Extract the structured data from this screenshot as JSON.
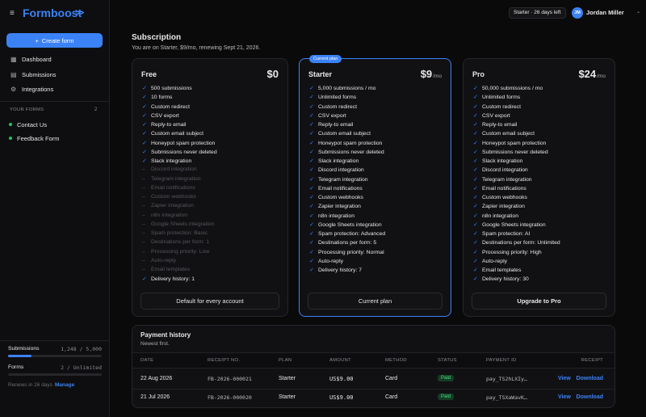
{
  "topbar": {
    "brand": "Formboost",
    "plan_badge": "Starter · 26 days left",
    "avatar": "JM",
    "user": "Jordan Miller"
  },
  "sidebar": {
    "create_button": "Create form",
    "nav": [
      "Dashboard",
      "Submissions",
      "Integrations"
    ],
    "forms_heading": "YOUR FORMS",
    "forms_count": "2",
    "forms": [
      "Contact Us",
      "Feedback Form"
    ],
    "usage": [
      {
        "label": "Submissions",
        "value": "1,248 / 5,000"
      },
      {
        "label": "Forms",
        "value": "2 / Unlimited"
      }
    ],
    "renewal": "Renews in 26 days ·",
    "manage": "Manage"
  },
  "subscription": {
    "title": "Subscription",
    "subtitle": "You are on Starter, $9/mo, renewing Sept 21, 2026.",
    "plans": [
      {
        "name": "Free",
        "price": "$0",
        "button": "Default for every account",
        "features": [
          {
            "text": "500 submissions",
            "included": true
          },
          {
            "text": "10 forms",
            "included": true
          },
          {
            "text": "Custom redirect",
            "included": true
          },
          {
            "text": "CSV export",
            "included": true
          },
          {
            "text": "Reply-to email",
            "included": true
          },
          {
            "text": "Custom email subject",
            "included": true
          },
          {
            "text": "Honeypot spam protection",
            "included": true
          },
          {
            "text": "Submissions never deleted",
            "included": true
          },
          {
            "text": "Slack integration",
            "included": true
          },
          {
            "text": "Discord integration",
            "included": false
          },
          {
            "text": "Telegram integration",
            "included": false
          },
          {
            "text": "Email notifications",
            "included": false
          },
          {
            "text": "Custom webhooks",
            "included": false
          },
          {
            "text": "Zapier integration",
            "included": false
          },
          {
            "text": "n8n integration",
            "included": false
          },
          {
            "text": "Google Sheets integration",
            "included": false
          },
          {
            "text": "Spam protection: Basic",
            "included": false
          },
          {
            "text": "Destinations per form: 1",
            "included": false
          },
          {
            "text": "Processing priority: Low",
            "included": false
          },
          {
            "text": "Auto-reply",
            "included": false
          },
          {
            "text": "Email templates",
            "included": false
          },
          {
            "text": "Delivery history: 1",
            "included": true
          }
        ]
      },
      {
        "name": "Starter",
        "badge": "Current plan",
        "price": "$9",
        "period": "/mo",
        "current": true,
        "button": "Current plan",
        "features": [
          {
            "text": "5,000 submissions / mo",
            "included": true
          },
          {
            "text": "Unlimited forms",
            "included": true
          },
          {
            "text": "Custom redirect",
            "included": true
          },
          {
            "text": "CSV export",
            "included": true
          },
          {
            "text": "Reply-to email",
            "included": true
          },
          {
            "text": "Custom email subject",
            "included": true
          },
          {
            "text": "Honeypot spam protection",
            "included": true
          },
          {
            "text": "Submissions never deleted",
            "included": true
          },
          {
            "text": "Slack integration",
            "included": true
          },
          {
            "text": "Discord integration",
            "included": true
          },
          {
            "text": "Telegram integration",
            "included": true
          },
          {
            "text": "Email notifications",
            "included": true
          },
          {
            "text": "Custom webhooks",
            "included": true
          },
          {
            "text": "Zapier integration",
            "included": true
          },
          {
            "text": "n8n integration",
            "included": true
          },
          {
            "text": "Google Sheets integration",
            "included": true
          },
          {
            "text": "Spam protection: Advanced",
            "included": true
          },
          {
            "text": "Destinations per form: 5",
            "included": true
          },
          {
            "text": "Processing priority: Normal",
            "included": true
          },
          {
            "text": "Auto-reply",
            "included": true
          },
          {
            "text": "Delivery history: 7",
            "included": true
          }
        ]
      },
      {
        "name": "Pro",
        "price": "$24",
        "period": "/mo",
        "button": "Upgrade to Pro",
        "features": [
          {
            "text": "50,000 submissions / mo",
            "included": true
          },
          {
            "text": "Unlimited forms",
            "included": true
          },
          {
            "text": "Custom redirect",
            "included": true
          },
          {
            "text": "CSV export",
            "included": true
          },
          {
            "text": "Reply-to email",
            "included": true
          },
          {
            "text": "Custom email subject",
            "included": true
          },
          {
            "text": "Honeypot spam protection",
            "included": true
          },
          {
            "text": "Submissions never deleted",
            "included": true
          },
          {
            "text": "Slack integration",
            "included": true
          },
          {
            "text": "Discord integration",
            "included": true
          },
          {
            "text": "Telegram integration",
            "included": true
          },
          {
            "text": "Email notifications",
            "included": true
          },
          {
            "text": "Custom webhooks",
            "included": true
          },
          {
            "text": "Zapier integration",
            "included": true
          },
          {
            "text": "n8n integration",
            "included": true
          },
          {
            "text": "Google Sheets integration",
            "included": true
          },
          {
            "text": "Spam protection: AI",
            "included": true
          },
          {
            "text": "Destinations per form: Unlimited",
            "included": true
          },
          {
            "text": "Processing priority: High",
            "included": true
          },
          {
            "text": "Auto-reply",
            "included": true
          },
          {
            "text": "Email templates",
            "included": true
          },
          {
            "text": "Delivery history: 30",
            "included": true
          }
        ]
      }
    ]
  },
  "payments": {
    "title": "Payment history",
    "subtitle": "Newest first.",
    "columns": [
      "DATE",
      "RECEIPT NO.",
      "PLAN",
      "AMOUNT",
      "METHOD",
      "STATUS",
      "PAYMENT ID",
      "RECEIPT"
    ],
    "rows": [
      {
        "date": "22 Aug 2026",
        "receipt_no": "FB-2026-000021",
        "plan": "Starter",
        "amount": "US$9.00",
        "method": "Card",
        "status": "Paid",
        "payment_id": "pay_TS2hLXIy…",
        "view": "View",
        "download": "Download"
      },
      {
        "date": "21 Jul 2026",
        "receipt_no": "FB-2026-000020",
        "plan": "Starter",
        "amount": "US$9.00",
        "method": "Card",
        "status": "Paid",
        "payment_id": "pay_TSXaWavK…",
        "view": "View",
        "download": "Download"
      }
    ]
  }
}
